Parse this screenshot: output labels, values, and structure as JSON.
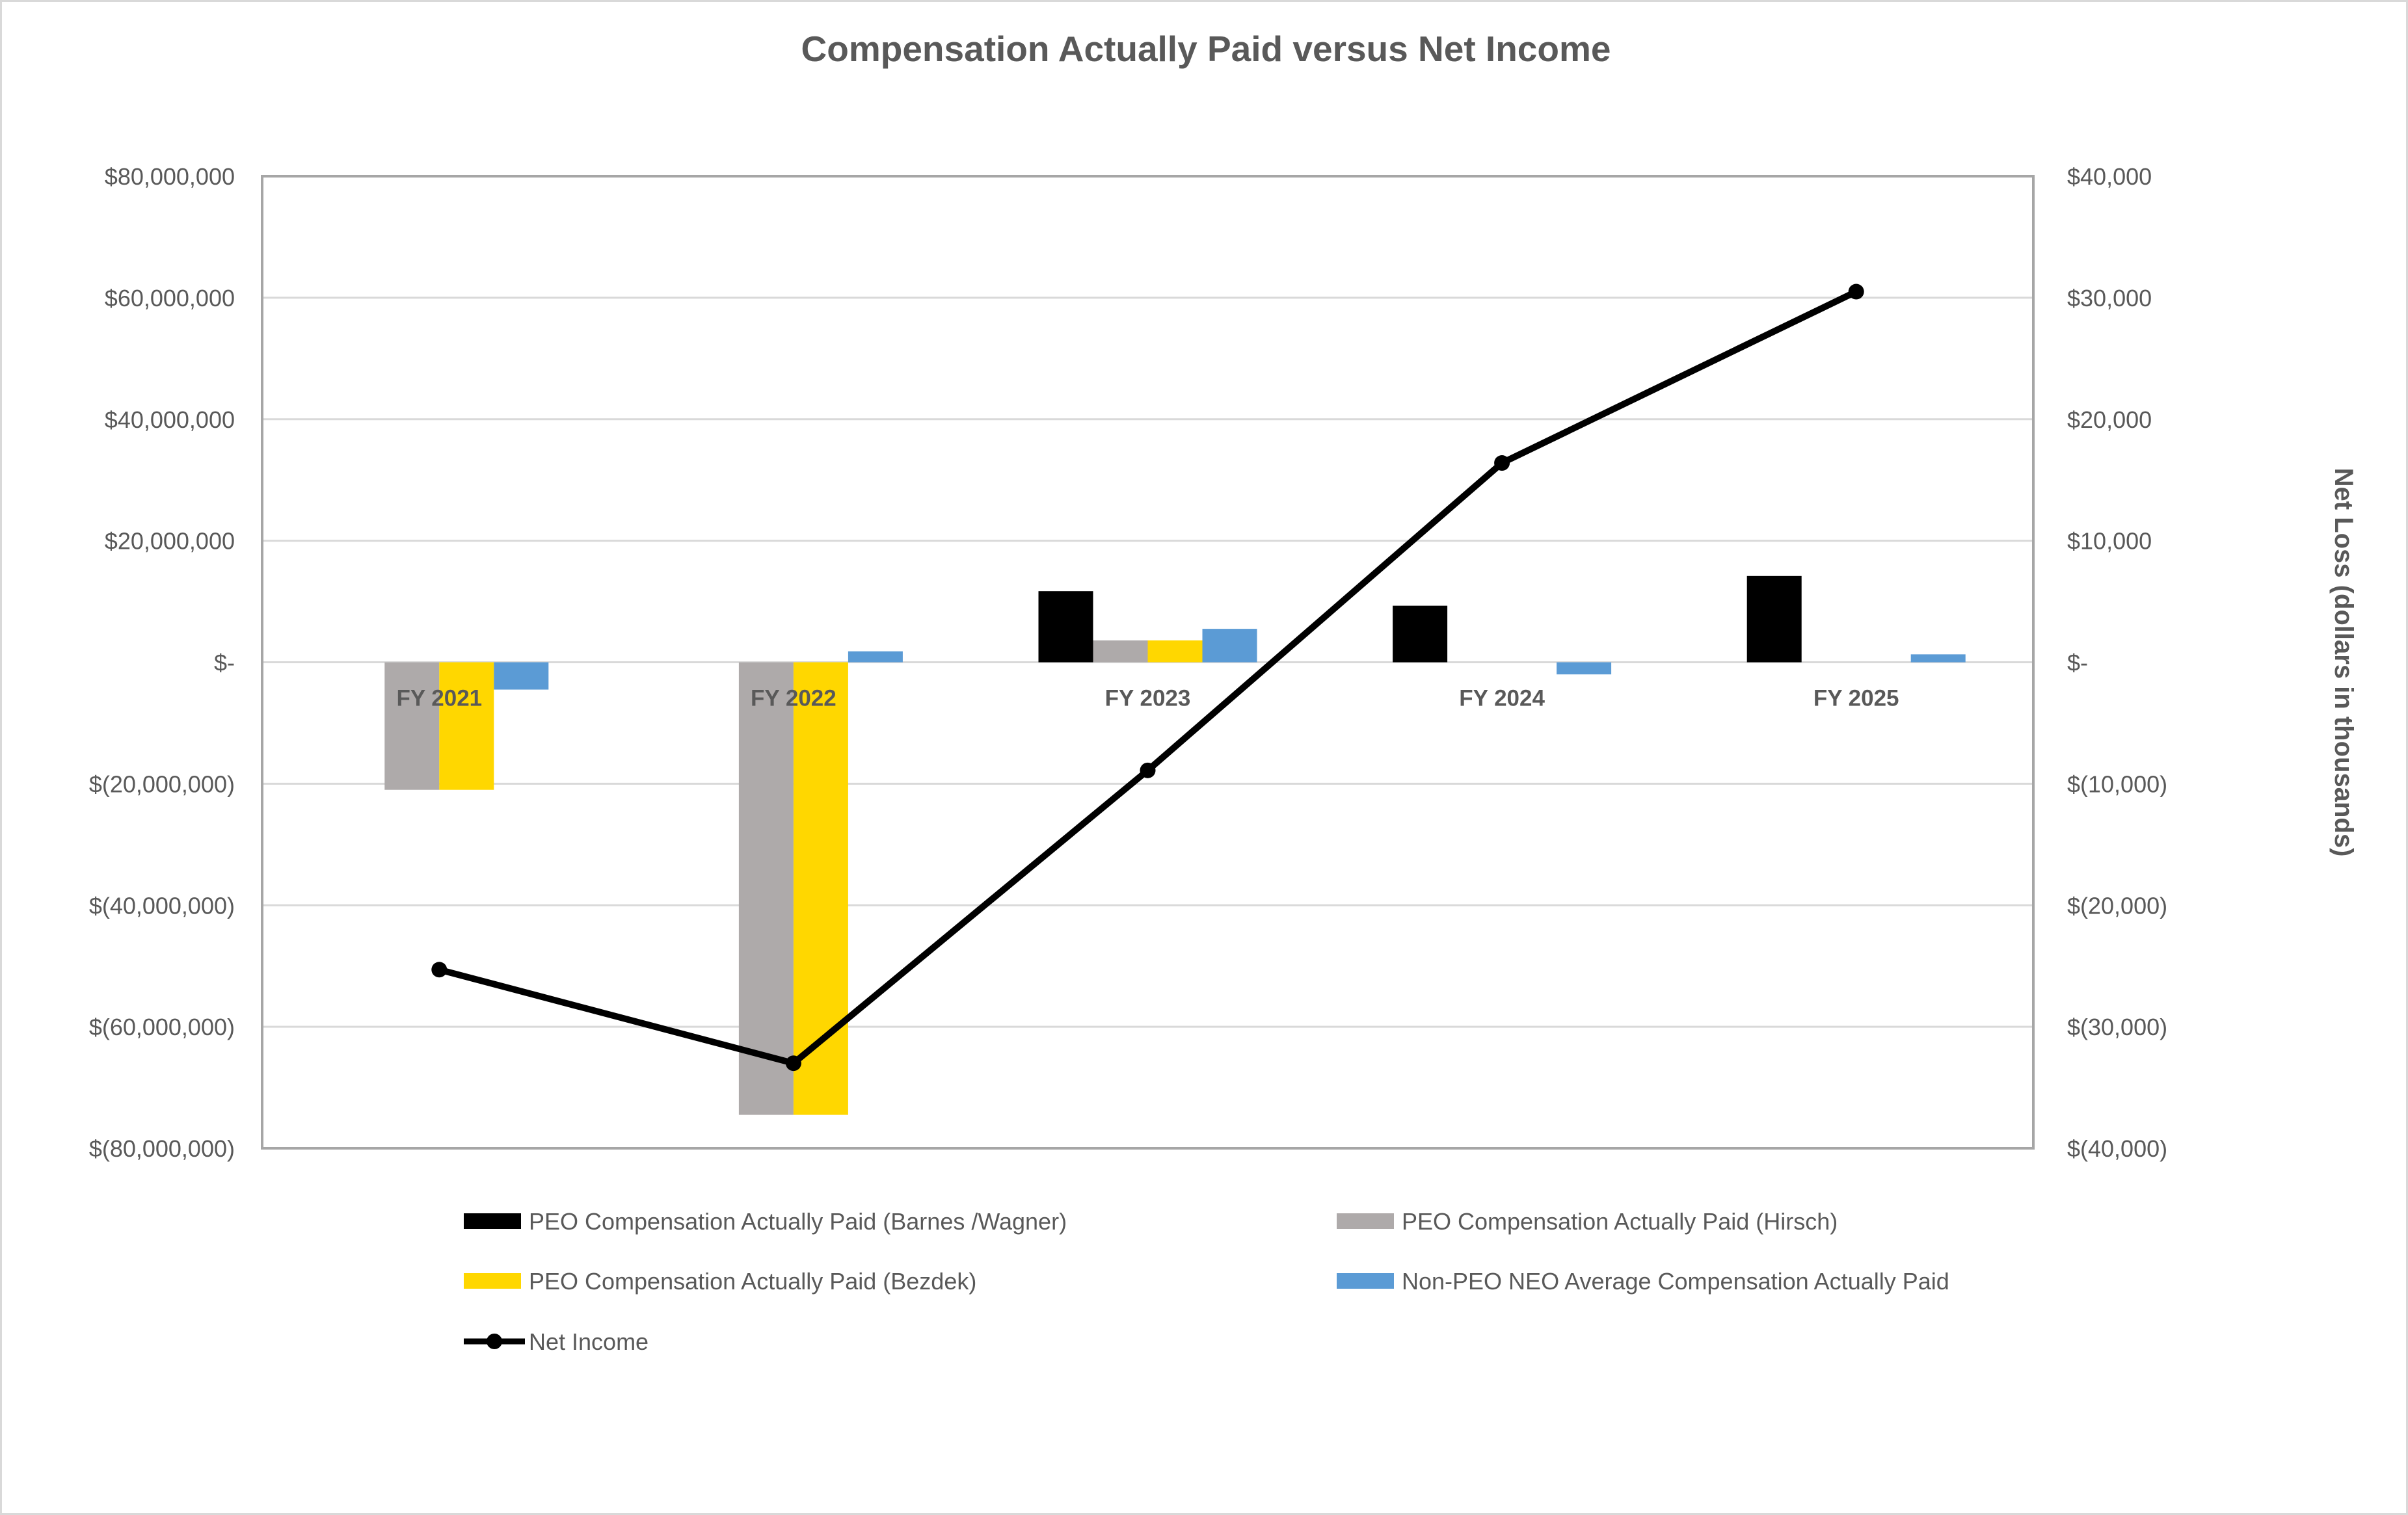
{
  "chart_data": {
    "type": "bar",
    "title": "Compensation Actually Paid versus Net Income",
    "categories": [
      "FY 2021",
      "FY 2022",
      "FY 2023",
      "FY 2024",
      "FY 2025"
    ],
    "y_left": {
      "range": [
        -80000000,
        80000000
      ],
      "step": 20000000,
      "tick_labels": [
        "$(80,000,000)",
        "$(60,000,000)",
        "$(40,000,000)",
        "$(20,000,000)",
        "$-",
        "$20,000,000",
        "$40,000,000",
        "$60,000,000",
        "$80,000,000"
      ]
    },
    "y_right": {
      "label": "Net Loss (dollars in thousands)",
      "range": [
        -40000,
        40000
      ],
      "step": 10000,
      "tick_labels": [
        "$(40,000)",
        "$(30,000)",
        "$(20,000)",
        "$(10,000)",
        "$-",
        "$10,000",
        "$20,000",
        "$30,000",
        "$40,000"
      ]
    },
    "grid": true,
    "legend_position": "bottom",
    "series": [
      {
        "name": "PEO Compensation Actually Paid (Barnes /Wagner)",
        "type": "bar",
        "axis": "left",
        "color": "#000000",
        "values": [
          null,
          null,
          11700000,
          9300000,
          14200000
        ]
      },
      {
        "name": "PEO Compensation Actually Paid (Hirsch)",
        "type": "bar",
        "axis": "left",
        "color": "#aeaaaa",
        "values": [
          -21000000,
          -74500000,
          3600000,
          null,
          null
        ]
      },
      {
        "name": "PEO Compensation Actually Paid (Bezdek)",
        "type": "bar",
        "axis": "left",
        "color": "#ffd700",
        "values": [
          -21000000,
          -74500000,
          3600000,
          null,
          null
        ]
      },
      {
        "name": "Non-PEO NEO Average Compensation Actually Paid",
        "type": "bar",
        "axis": "left",
        "color": "#5b9bd5",
        "values": [
          -4500000,
          1800000,
          5500000,
          -2000000,
          1300000
        ]
      },
      {
        "name": "Net Income",
        "type": "line",
        "axis": "right",
        "color": "#000000",
        "values": [
          -25300,
          -33000,
          -8900,
          16400,
          30500
        ]
      }
    ]
  }
}
